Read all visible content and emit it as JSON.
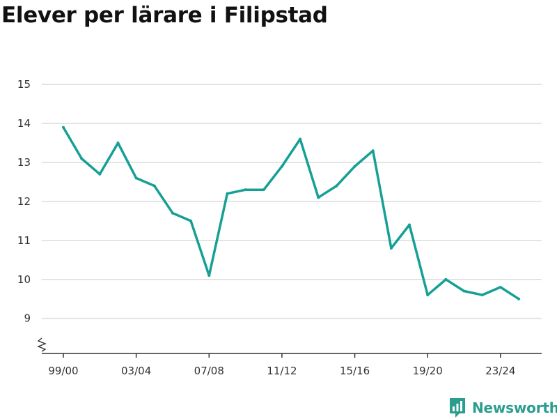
{
  "title": "Elever per lärare i Filipstad",
  "brand": {
    "name": "Newsworthy",
    "logo_icon": "bar-chart-speech-bubble-icon",
    "color": "#2a9d8f"
  },
  "chart_data": {
    "type": "line",
    "title": "Elever per lärare i Filipstad",
    "xlabel": "",
    "ylabel": "",
    "categories": [
      "99/00",
      "00/01",
      "01/02",
      "02/03",
      "03/04",
      "04/05",
      "05/06",
      "06/07",
      "07/08",
      "08/09",
      "09/10",
      "10/11",
      "11/12",
      "12/13",
      "13/14",
      "14/15",
      "15/16",
      "16/17",
      "17/18",
      "18/19",
      "19/20",
      "20/21",
      "21/22",
      "22/23",
      "23/24",
      "24/25"
    ],
    "x_tick_labels": [
      "99/00",
      "03/04",
      "07/08",
      "11/12",
      "15/16",
      "19/20",
      "23/24"
    ],
    "series": [
      {
        "values": [
          13.9,
          13.1,
          12.7,
          13.5,
          12.6,
          12.4,
          11.7,
          11.5,
          10.1,
          12.2,
          12.3,
          12.3,
          12.9,
          13.6,
          12.1,
          12.4,
          12.9,
          13.3,
          10.8,
          11.4,
          9.6,
          10.0,
          9.7,
          9.6,
          9.8,
          9.5
        ],
        "color": "#16a095"
      }
    ],
    "y_ticks": [
      9,
      10,
      11,
      12,
      13,
      14,
      15
    ],
    "ylim": [
      8.1,
      15.2
    ],
    "y_axis_break": true,
    "grid": true,
    "legend": "none"
  }
}
